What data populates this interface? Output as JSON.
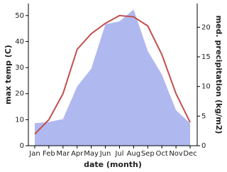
{
  "chart_data": {
    "type": "line",
    "x_label": "date (month)",
    "y_label": "max temp (C)",
    "y2_label": "med. precipitation (kg/m2)",
    "categories": [
      "Jan",
      "Feb",
      "Mar",
      "Apr",
      "May",
      "Jun",
      "Jul",
      "Aug",
      "Sep",
      "Oct",
      "Nov",
      "Dec"
    ],
    "ylim": [
      0,
      54.6
    ],
    "yticks": [
      0,
      10,
      20,
      30,
      40,
      50
    ],
    "y2lim": [
      0,
      24
    ],
    "y2ticks": [
      0,
      5,
      10,
      15,
      20
    ],
    "series": [
      {
        "name": "max temp (C)",
        "type": "line",
        "color": "#c0504d",
        "values": [
          4.5,
          10,
          20,
          37,
          43,
          47,
          50,
          49.5,
          46,
          35,
          20,
          9
        ]
      },
      {
        "name": "med. precipitation (kg/m2)",
        "type": "area",
        "axis": "y2",
        "color": "#b0b8f0",
        "values": [
          3.8,
          4,
          4.5,
          10,
          13,
          20.5,
          21,
          23,
          16,
          12,
          6,
          3.8
        ]
      }
    ]
  }
}
